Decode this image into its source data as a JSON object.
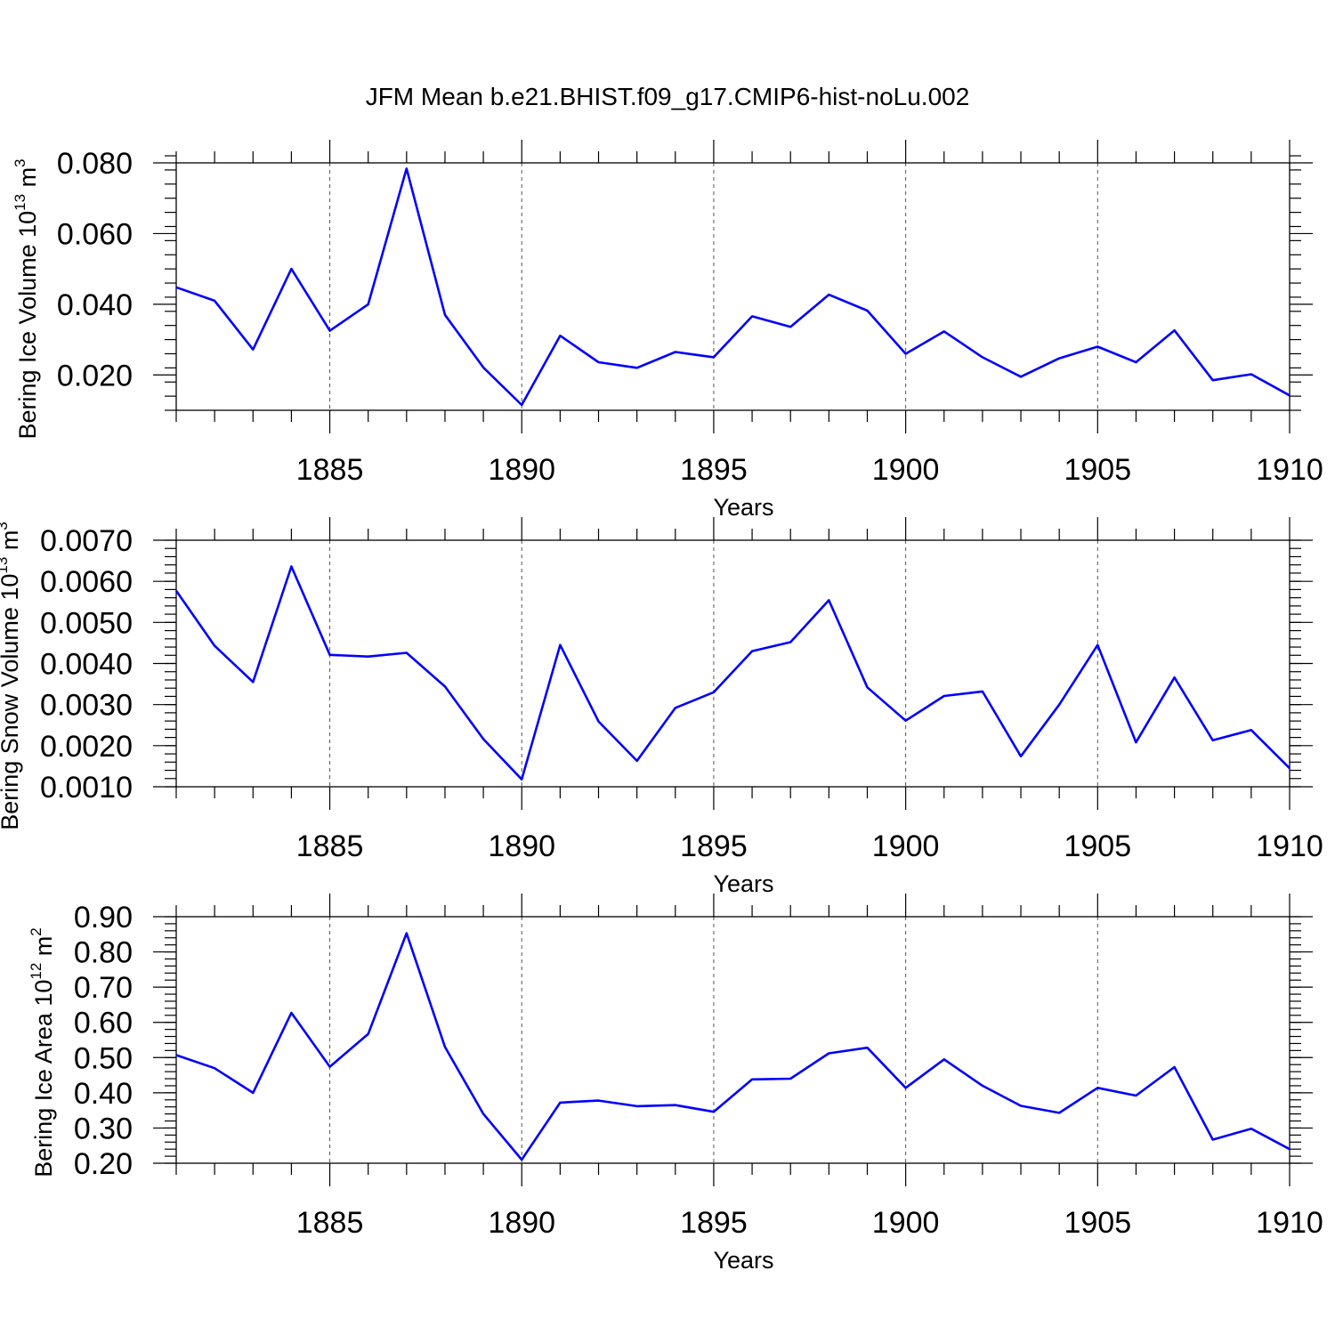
{
  "title": "JFM Mean b.e21.BHIST.f09_g17.CMIP6-hist-noLu.002",
  "colors": {
    "series": "#0000ff",
    "axis": "#000000",
    "grid": "#555555"
  },
  "chart_data": [
    {
      "type": "line",
      "title": "JFM Mean b.e21.BHIST.f09_g17.CMIP6-hist-noLu.002",
      "ylabel": "Bering Ice Volume 10",
      "ylabel_exp": "13",
      "ylabel_unit": " m",
      "ylabel_unit_exp": "3",
      "xlabel": "Years",
      "xlim": [
        1881,
        1910
      ],
      "ylim": [
        0.01,
        0.08
      ],
      "yticks": [
        0.02,
        0.04,
        0.06,
        0.08
      ],
      "ytick_labels": [
        "0.020",
        "0.040",
        "0.060",
        "0.080"
      ],
      "yminor_step": 0.004,
      "xticks": [
        1885,
        1890,
        1895,
        1900,
        1905,
        1910
      ],
      "xtick_labels": [
        "1885",
        "1890",
        "1895",
        "1900",
        "1905",
        "1910"
      ],
      "grid": "dashed vertical at major x ticks",
      "x": [
        1881,
        1882,
        1883,
        1884,
        1885,
        1886,
        1887,
        1888,
        1889,
        1890,
        1891,
        1892,
        1893,
        1894,
        1895,
        1896,
        1897,
        1898,
        1899,
        1900,
        1901,
        1902,
        1903,
        1904,
        1905,
        1906,
        1907,
        1908,
        1909,
        1910
      ],
      "values": [
        0.0448,
        0.041,
        0.0272,
        0.05,
        0.0325,
        0.04,
        0.0784,
        0.037,
        0.0221,
        0.0115,
        0.0311,
        0.0236,
        0.022,
        0.0265,
        0.025,
        0.0366,
        0.0336,
        0.0427,
        0.0382,
        0.026,
        0.0323,
        0.025,
        0.0195,
        0.0247,
        0.028,
        0.0236,
        0.0326,
        0.0185,
        0.0202,
        0.0142
      ]
    },
    {
      "type": "line",
      "ylabel": "Bering Snow Volume 10",
      "ylabel_exp": "13",
      "ylabel_unit": " m",
      "ylabel_unit_exp": "3",
      "xlabel": "Years",
      "xlim": [
        1881,
        1910
      ],
      "ylim": [
        0.001,
        0.007
      ],
      "yticks": [
        0.001,
        0.002,
        0.003,
        0.004,
        0.005,
        0.006,
        0.007
      ],
      "ytick_labels": [
        "0.0010",
        "0.0020",
        "0.0030",
        "0.0040",
        "0.0050",
        "0.0060",
        "0.0070"
      ],
      "yminor_step": 0.0002,
      "xticks": [
        1885,
        1890,
        1895,
        1900,
        1905,
        1910
      ],
      "xtick_labels": [
        "1885",
        "1890",
        "1895",
        "1900",
        "1905",
        "1910"
      ],
      "grid": "dashed vertical at major x ticks",
      "x": [
        1881,
        1882,
        1883,
        1884,
        1885,
        1886,
        1887,
        1888,
        1889,
        1890,
        1891,
        1892,
        1893,
        1894,
        1895,
        1896,
        1897,
        1898,
        1899,
        1900,
        1901,
        1902,
        1903,
        1904,
        1905,
        1906,
        1907,
        1908,
        1909,
        1910
      ],
      "values": [
        0.00577,
        0.00443,
        0.00355,
        0.00636,
        0.00421,
        0.00417,
        0.00426,
        0.00344,
        0.00216,
        0.00118,
        0.00445,
        0.00259,
        0.00163,
        0.00292,
        0.0033,
        0.0043,
        0.00452,
        0.00554,
        0.00342,
        0.00261,
        0.00321,
        0.00332,
        0.00174,
        0.003,
        0.00445,
        0.00208,
        0.00366,
        0.00213,
        0.00238,
        0.00145
      ]
    },
    {
      "type": "line",
      "ylabel": "Bering Ice Area 10",
      "ylabel_exp": "12",
      "ylabel_unit": " m",
      "ylabel_unit_exp": "2",
      "xlabel": "Years",
      "xlim": [
        1881,
        1910
      ],
      "ylim": [
        0.2,
        0.9
      ],
      "yticks": [
        0.2,
        0.3,
        0.4,
        0.5,
        0.6,
        0.7,
        0.8,
        0.9
      ],
      "ytick_labels": [
        "0.20",
        "0.30",
        "0.40",
        "0.50",
        "0.60",
        "0.70",
        "0.80",
        "0.90"
      ],
      "yminor_step": 0.02,
      "xticks": [
        1885,
        1890,
        1895,
        1900,
        1905,
        1910
      ],
      "xtick_labels": [
        "1885",
        "1890",
        "1895",
        "1900",
        "1905",
        "1910"
      ],
      "grid": "dashed vertical at major x ticks",
      "x": [
        1881,
        1882,
        1883,
        1884,
        1885,
        1886,
        1887,
        1888,
        1889,
        1890,
        1891,
        1892,
        1893,
        1894,
        1895,
        1896,
        1897,
        1898,
        1899,
        1900,
        1901,
        1902,
        1903,
        1904,
        1905,
        1906,
        1907,
        1908,
        1909,
        1910
      ],
      "values": [
        0.507,
        0.47,
        0.4,
        0.627,
        0.474,
        0.567,
        0.853,
        0.53,
        0.34,
        0.21,
        0.372,
        0.378,
        0.362,
        0.365,
        0.346,
        0.438,
        0.44,
        0.512,
        0.528,
        0.414,
        0.495,
        0.42,
        0.363,
        0.343,
        0.414,
        0.392,
        0.473,
        0.267,
        0.298,
        0.24
      ]
    }
  ]
}
